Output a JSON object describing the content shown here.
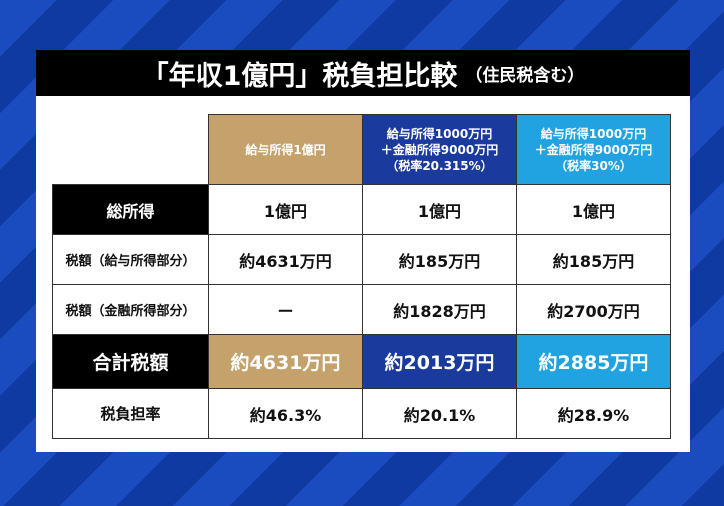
{
  "title": {
    "main": "「年収1億円」税負担比較",
    "sub": "（住民税含む）"
  },
  "colors": {
    "gold": "#c5a26c",
    "navy": "#1b3a9e",
    "sky": "#21a3e2"
  },
  "columns": [
    {
      "line1": "給与所得1億円",
      "line2": "",
      "line3": ""
    },
    {
      "line1": "給与所得1000万円",
      "line2": "＋金融所得9000万円",
      "line3": "（税率20.315%）"
    },
    {
      "line1": "給与所得1000万円",
      "line2": "＋金融所得9000万円",
      "line3": "（税率30%）"
    }
  ],
  "rows": [
    {
      "label": "総所得",
      "values": [
        "1億円",
        "1億円",
        "1億円"
      ]
    },
    {
      "label": "税額（給与所得部分）",
      "values": [
        "約4631万円",
        "約185万円",
        "約185万円"
      ]
    },
    {
      "label": "税額（金融所得部分）",
      "values": [
        "ー",
        "約1828万円",
        "約2700万円"
      ]
    },
    {
      "label": "合計税額",
      "values": [
        "約4631万円",
        "約2013万円",
        "約2885万円"
      ]
    },
    {
      "label": "税負担率",
      "values": [
        "約46.3%",
        "約20.1%",
        "約28.9%"
      ]
    }
  ]
}
